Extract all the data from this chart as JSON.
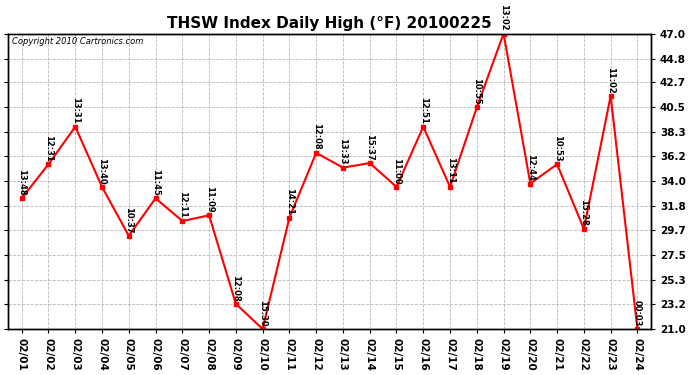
{
  "title": "THSW Index Daily High (°F) 20100225",
  "copyright": "Copyright 2010 Cartronics.com",
  "x_labels": [
    "02/01",
    "02/02",
    "02/03",
    "02/04",
    "02/05",
    "02/06",
    "02/07",
    "02/08",
    "02/09",
    "02/10",
    "02/11",
    "02/12",
    "02/13",
    "02/14",
    "02/15",
    "02/16",
    "02/17",
    "02/18",
    "02/19",
    "02/20",
    "02/21",
    "02/22",
    "02/23",
    "02/24"
  ],
  "y_values": [
    32.5,
    35.5,
    38.8,
    33.5,
    29.2,
    32.5,
    30.5,
    31.0,
    23.2,
    21.0,
    30.8,
    36.5,
    35.2,
    35.6,
    33.5,
    38.8,
    33.5,
    40.5,
    47.0,
    33.8,
    35.5,
    29.8,
    41.5,
    21.0
  ],
  "point_labels": [
    "13:48",
    "12:31",
    "13:31",
    "13:40",
    "10:37",
    "11:45",
    "12:11",
    "11:09",
    "12:08",
    "15:30",
    "14:21",
    "12:08",
    "13:33",
    "15:37",
    "11:00",
    "12:51",
    "13:11",
    "10:55",
    "13:02",
    "12:44",
    "10:53",
    "15:28",
    "11:02",
    "00:03"
  ],
  "ylim_min": 21.0,
  "ylim_max": 47.0,
  "yticks": [
    21.0,
    23.2,
    25.3,
    27.5,
    29.7,
    31.8,
    34.0,
    36.2,
    38.3,
    40.5,
    42.7,
    44.8,
    47.0
  ],
  "line_color": "red",
  "marker_color": "red",
  "bg_color": "#ffffff",
  "grid_color": "#b0b0b0",
  "title_fontsize": 11,
  "tick_fontsize": 7.5
}
